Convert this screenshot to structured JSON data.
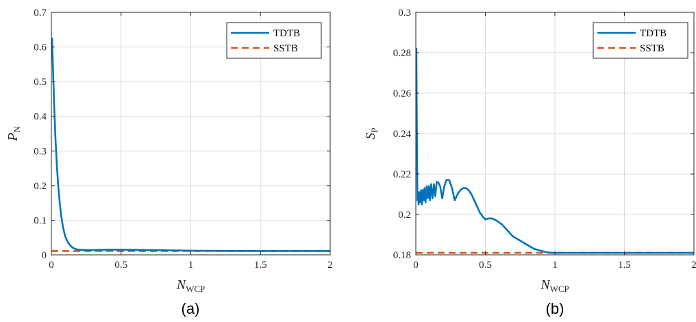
{
  "chart_data": [
    {
      "type": "line",
      "panel": "(a)",
      "caption": "(a)",
      "xlabel": "N",
      "xlabel_sub": "WCP",
      "ylabel": "P",
      "ylabel_sub": "N",
      "xlim": [
        0,
        2
      ],
      "ylim": [
        0,
        0.7
      ],
      "xticks": [
        0,
        0.5,
        1,
        1.5,
        2
      ],
      "xtick_labels": [
        "0",
        "0.5",
        "1",
        "1.5",
        "2"
      ],
      "yticks": [
        0,
        0.1,
        0.2,
        0.3,
        0.4,
        0.5,
        0.6,
        0.7
      ],
      "ytick_labels": [
        "0",
        "0.1",
        "0.2",
        "0.3",
        "0.4",
        "0.5",
        "0.6",
        "0.7"
      ],
      "grid": true,
      "legend_position": "top-right",
      "series": [
        {
          "name": "TDTB",
          "color": "#0072BD",
          "style": "solid",
          "x": [
            0,
            0.005,
            0.01,
            0.02,
            0.03,
            0.04,
            0.05,
            0.06,
            0.07,
            0.08,
            0.09,
            0.1,
            0.12,
            0.14,
            0.16,
            0.18,
            0.2,
            0.25,
            0.3,
            0.4,
            0.5,
            0.6,
            0.7,
            0.8,
            1.0,
            1.2,
            1.5,
            1.8,
            2.0
          ],
          "y": [
            0.625,
            0.625,
            0.56,
            0.43,
            0.33,
            0.255,
            0.195,
            0.15,
            0.115,
            0.088,
            0.068,
            0.053,
            0.035,
            0.025,
            0.019,
            0.016,
            0.015,
            0.014,
            0.014,
            0.015,
            0.015,
            0.0145,
            0.014,
            0.0135,
            0.012,
            0.0115,
            0.011,
            0.011,
            0.011
          ]
        },
        {
          "name": "SSTB",
          "color": "#D95319",
          "style": "dashed",
          "x": [
            0,
            2
          ],
          "y": [
            0.011,
            0.011
          ]
        }
      ]
    },
    {
      "type": "line",
      "panel": "(b)",
      "caption": "(b)",
      "xlabel": "N",
      "xlabel_sub": "WCP",
      "ylabel": "S",
      "ylabel_sub": "P",
      "xlim": [
        0,
        2
      ],
      "ylim": [
        0.18,
        0.3
      ],
      "xticks": [
        0,
        0.5,
        1,
        1.5,
        2
      ],
      "xtick_labels": [
        "0",
        "0.5",
        "1",
        "1.5",
        "2"
      ],
      "yticks": [
        0.18,
        0.2,
        0.22,
        0.24,
        0.26,
        0.28,
        0.3
      ],
      "ytick_labels": [
        "0.18",
        "0.2",
        "0.22",
        "0.24",
        "0.26",
        "0.28",
        "0.3"
      ],
      "grid": true,
      "legend_position": "top-right",
      "series": [
        {
          "name": "TDTB",
          "color": "#0072BD",
          "style": "solid",
          "x": [
            0,
            0.004,
            0.008,
            0.012,
            0.016,
            0.02,
            0.026,
            0.032,
            0.038,
            0.044,
            0.05,
            0.056,
            0.062,
            0.07,
            0.078,
            0.086,
            0.094,
            0.102,
            0.11,
            0.12,
            0.13,
            0.14,
            0.15,
            0.16,
            0.175,
            0.19,
            0.205,
            0.22,
            0.24,
            0.26,
            0.28,
            0.3,
            0.32,
            0.34,
            0.36,
            0.38,
            0.4,
            0.42,
            0.44,
            0.46,
            0.48,
            0.5,
            0.52,
            0.55,
            0.58,
            0.62,
            0.66,
            0.7,
            0.75,
            0.8,
            0.85,
            0.9,
            0.95,
            1.0,
            1.2,
            1.5,
            2.0
          ],
          "y": [
            0.282,
            0.282,
            0.235,
            0.207,
            0.211,
            0.205,
            0.211,
            0.206,
            0.212,
            0.205,
            0.212,
            0.207,
            0.213,
            0.206,
            0.214,
            0.208,
            0.214,
            0.207,
            0.215,
            0.208,
            0.215,
            0.209,
            0.216,
            0.216,
            0.214,
            0.208,
            0.214,
            0.217,
            0.217,
            0.213,
            0.207,
            0.21,
            0.212,
            0.213,
            0.213,
            0.212,
            0.21,
            0.207,
            0.204,
            0.201,
            0.199,
            0.1975,
            0.198,
            0.198,
            0.197,
            0.195,
            0.192,
            0.189,
            0.187,
            0.185,
            0.183,
            0.182,
            0.1812,
            0.181,
            0.181,
            0.181,
            0.181
          ]
        },
        {
          "name": "SSTB",
          "color": "#D95319",
          "style": "dashed",
          "x": [
            0,
            2
          ],
          "y": [
            0.181,
            0.181
          ]
        }
      ]
    }
  ]
}
